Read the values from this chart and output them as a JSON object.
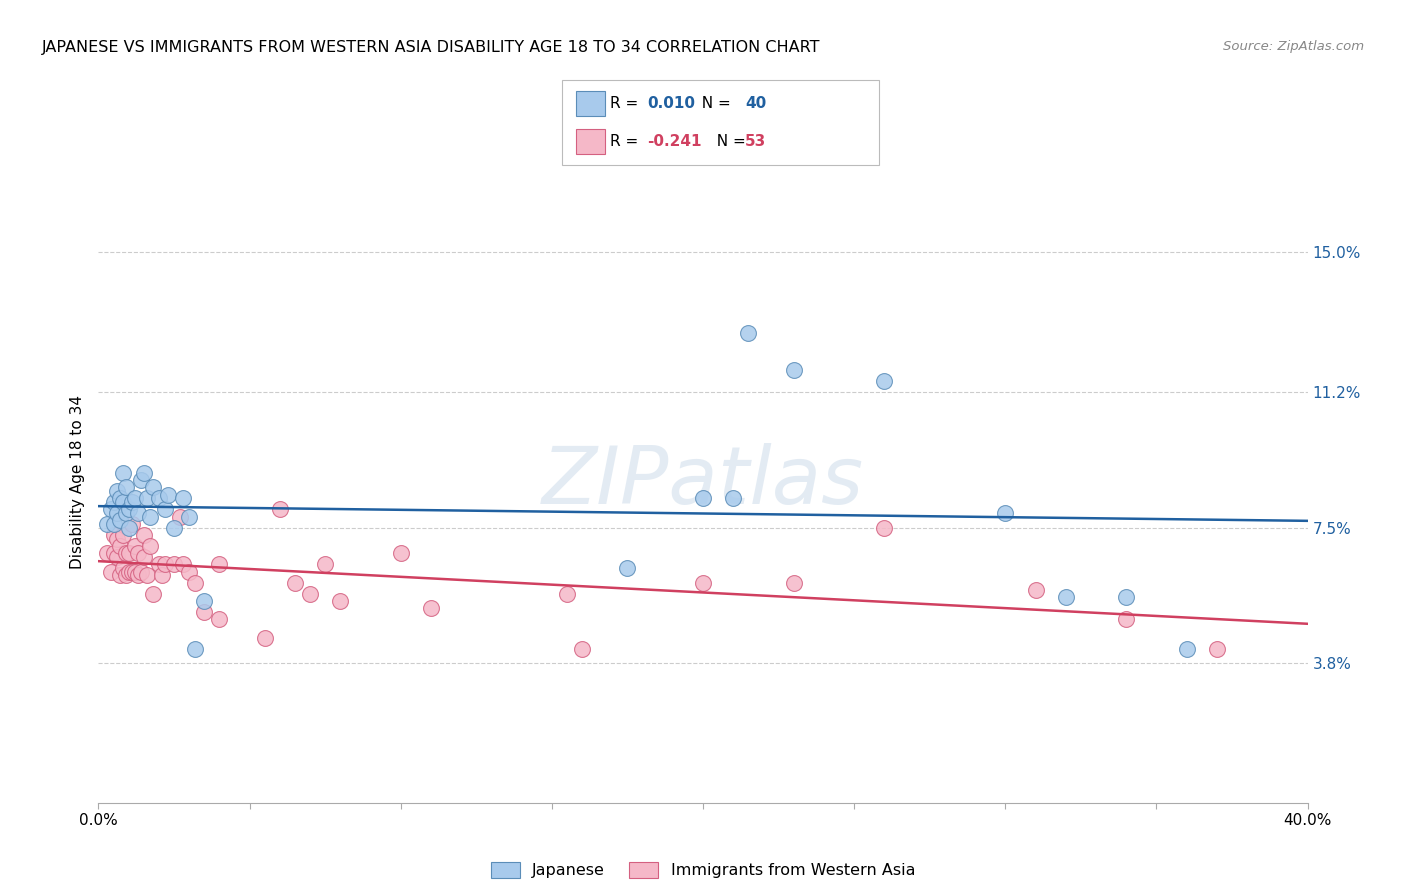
{
  "title": "JAPANESE VS IMMIGRANTS FROM WESTERN ASIA DISABILITY AGE 18 TO 34 CORRELATION CHART",
  "source": "Source: ZipAtlas.com",
  "ylabel": "Disability Age 18 to 34",
  "xlim": [
    0.0,
    0.4
  ],
  "ylim": [
    0.0,
    0.175
  ],
  "xticks": [
    0.0,
    0.05,
    0.1,
    0.15,
    0.2,
    0.25,
    0.3,
    0.35,
    0.4
  ],
  "xticklabels": [
    "0.0%",
    "",
    "",
    "",
    "",
    "",
    "",
    "",
    "40.0%"
  ],
  "ytick_positions": [
    0.038,
    0.075,
    0.112,
    0.15
  ],
  "ytick_labels": [
    "3.8%",
    "7.5%",
    "11.2%",
    "15.0%"
  ],
  "r_japanese": "0.010",
  "n_japanese": "40",
  "r_western_asia": "-0.241",
  "n_western_asia": "53",
  "japanese_color": "#A8CAEC",
  "western_asia_color": "#F5B8C8",
  "japanese_edge_color": "#5B8DB8",
  "western_asia_edge_color": "#D46080",
  "trendline_japanese_color": "#2060A0",
  "trendline_western_asia_color": "#D04060",
  "watermark_color": "#C8D8E8",
  "watermark_alpha": 0.5,
  "japanese_x": [
    0.003,
    0.004,
    0.005,
    0.005,
    0.006,
    0.006,
    0.007,
    0.007,
    0.008,
    0.008,
    0.009,
    0.009,
    0.01,
    0.01,
    0.011,
    0.012,
    0.013,
    0.014,
    0.015,
    0.016,
    0.017,
    0.018,
    0.02,
    0.022,
    0.023,
    0.025,
    0.028,
    0.03,
    0.032,
    0.035,
    0.175,
    0.2,
    0.21,
    0.215,
    0.23,
    0.26,
    0.3,
    0.32,
    0.34,
    0.36
  ],
  "japanese_y": [
    0.076,
    0.08,
    0.076,
    0.082,
    0.079,
    0.085,
    0.077,
    0.083,
    0.082,
    0.09,
    0.079,
    0.086,
    0.075,
    0.08,
    0.082,
    0.083,
    0.079,
    0.088,
    0.09,
    0.083,
    0.078,
    0.086,
    0.083,
    0.08,
    0.084,
    0.075,
    0.083,
    0.078,
    0.042,
    0.055,
    0.064,
    0.083,
    0.083,
    0.128,
    0.118,
    0.115,
    0.079,
    0.056,
    0.056,
    0.042
  ],
  "western_asia_x": [
    0.003,
    0.004,
    0.005,
    0.005,
    0.006,
    0.006,
    0.007,
    0.007,
    0.008,
    0.008,
    0.009,
    0.009,
    0.01,
    0.01,
    0.011,
    0.011,
    0.012,
    0.012,
    0.013,
    0.013,
    0.014,
    0.015,
    0.015,
    0.016,
    0.017,
    0.018,
    0.02,
    0.021,
    0.022,
    0.025,
    0.027,
    0.028,
    0.03,
    0.032,
    0.035,
    0.04,
    0.04,
    0.055,
    0.06,
    0.065,
    0.07,
    0.075,
    0.08,
    0.1,
    0.11,
    0.155,
    0.16,
    0.2,
    0.23,
    0.26,
    0.31,
    0.34,
    0.37
  ],
  "western_asia_y": [
    0.068,
    0.063,
    0.073,
    0.068,
    0.072,
    0.067,
    0.062,
    0.07,
    0.064,
    0.073,
    0.062,
    0.068,
    0.063,
    0.068,
    0.063,
    0.076,
    0.063,
    0.07,
    0.062,
    0.068,
    0.063,
    0.067,
    0.073,
    0.062,
    0.07,
    0.057,
    0.065,
    0.062,
    0.065,
    0.065,
    0.078,
    0.065,
    0.063,
    0.06,
    0.052,
    0.065,
    0.05,
    0.045,
    0.08,
    0.06,
    0.057,
    0.065,
    0.055,
    0.068,
    0.053,
    0.057,
    0.042,
    0.06,
    0.06,
    0.075,
    0.058,
    0.05,
    0.042
  ]
}
